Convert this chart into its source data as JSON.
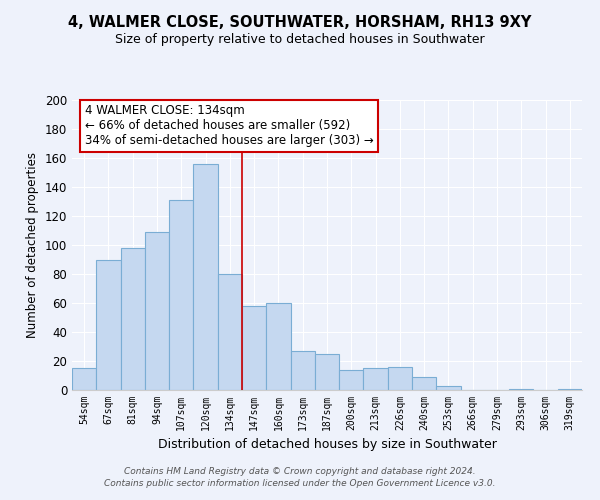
{
  "title": "4, WALMER CLOSE, SOUTHWATER, HORSHAM, RH13 9XY",
  "subtitle": "Size of property relative to detached houses in Southwater",
  "xlabel": "Distribution of detached houses by size in Southwater",
  "ylabel": "Number of detached properties",
  "bar_color": "#c5d8f0",
  "bar_edge_color": "#7aadd4",
  "background_color": "#eef2fb",
  "grid_color": "#ffffff",
  "categories": [
    "54sqm",
    "67sqm",
    "81sqm",
    "94sqm",
    "107sqm",
    "120sqm",
    "134sqm",
    "147sqm",
    "160sqm",
    "173sqm",
    "187sqm",
    "200sqm",
    "213sqm",
    "226sqm",
    "240sqm",
    "253sqm",
    "266sqm",
    "279sqm",
    "293sqm",
    "306sqm",
    "319sqm"
  ],
  "values": [
    15,
    90,
    98,
    109,
    131,
    156,
    80,
    58,
    60,
    27,
    25,
    14,
    15,
    16,
    9,
    3,
    0,
    0,
    1,
    0,
    1
  ],
  "vline_color": "#cc0000",
  "annotation_title": "4 WALMER CLOSE: 134sqm",
  "annotation_line1": "← 66% of detached houses are smaller (592)",
  "annotation_line2": "34% of semi-detached houses are larger (303) →",
  "annotation_box_color": "#ffffff",
  "annotation_box_edge": "#cc0000",
  "ylim": [
    0,
    200
  ],
  "yticks": [
    0,
    20,
    40,
    60,
    80,
    100,
    120,
    140,
    160,
    180,
    200
  ],
  "footer1": "Contains HM Land Registry data © Crown copyright and database right 2024.",
  "footer2": "Contains public sector information licensed under the Open Government Licence v3.0."
}
